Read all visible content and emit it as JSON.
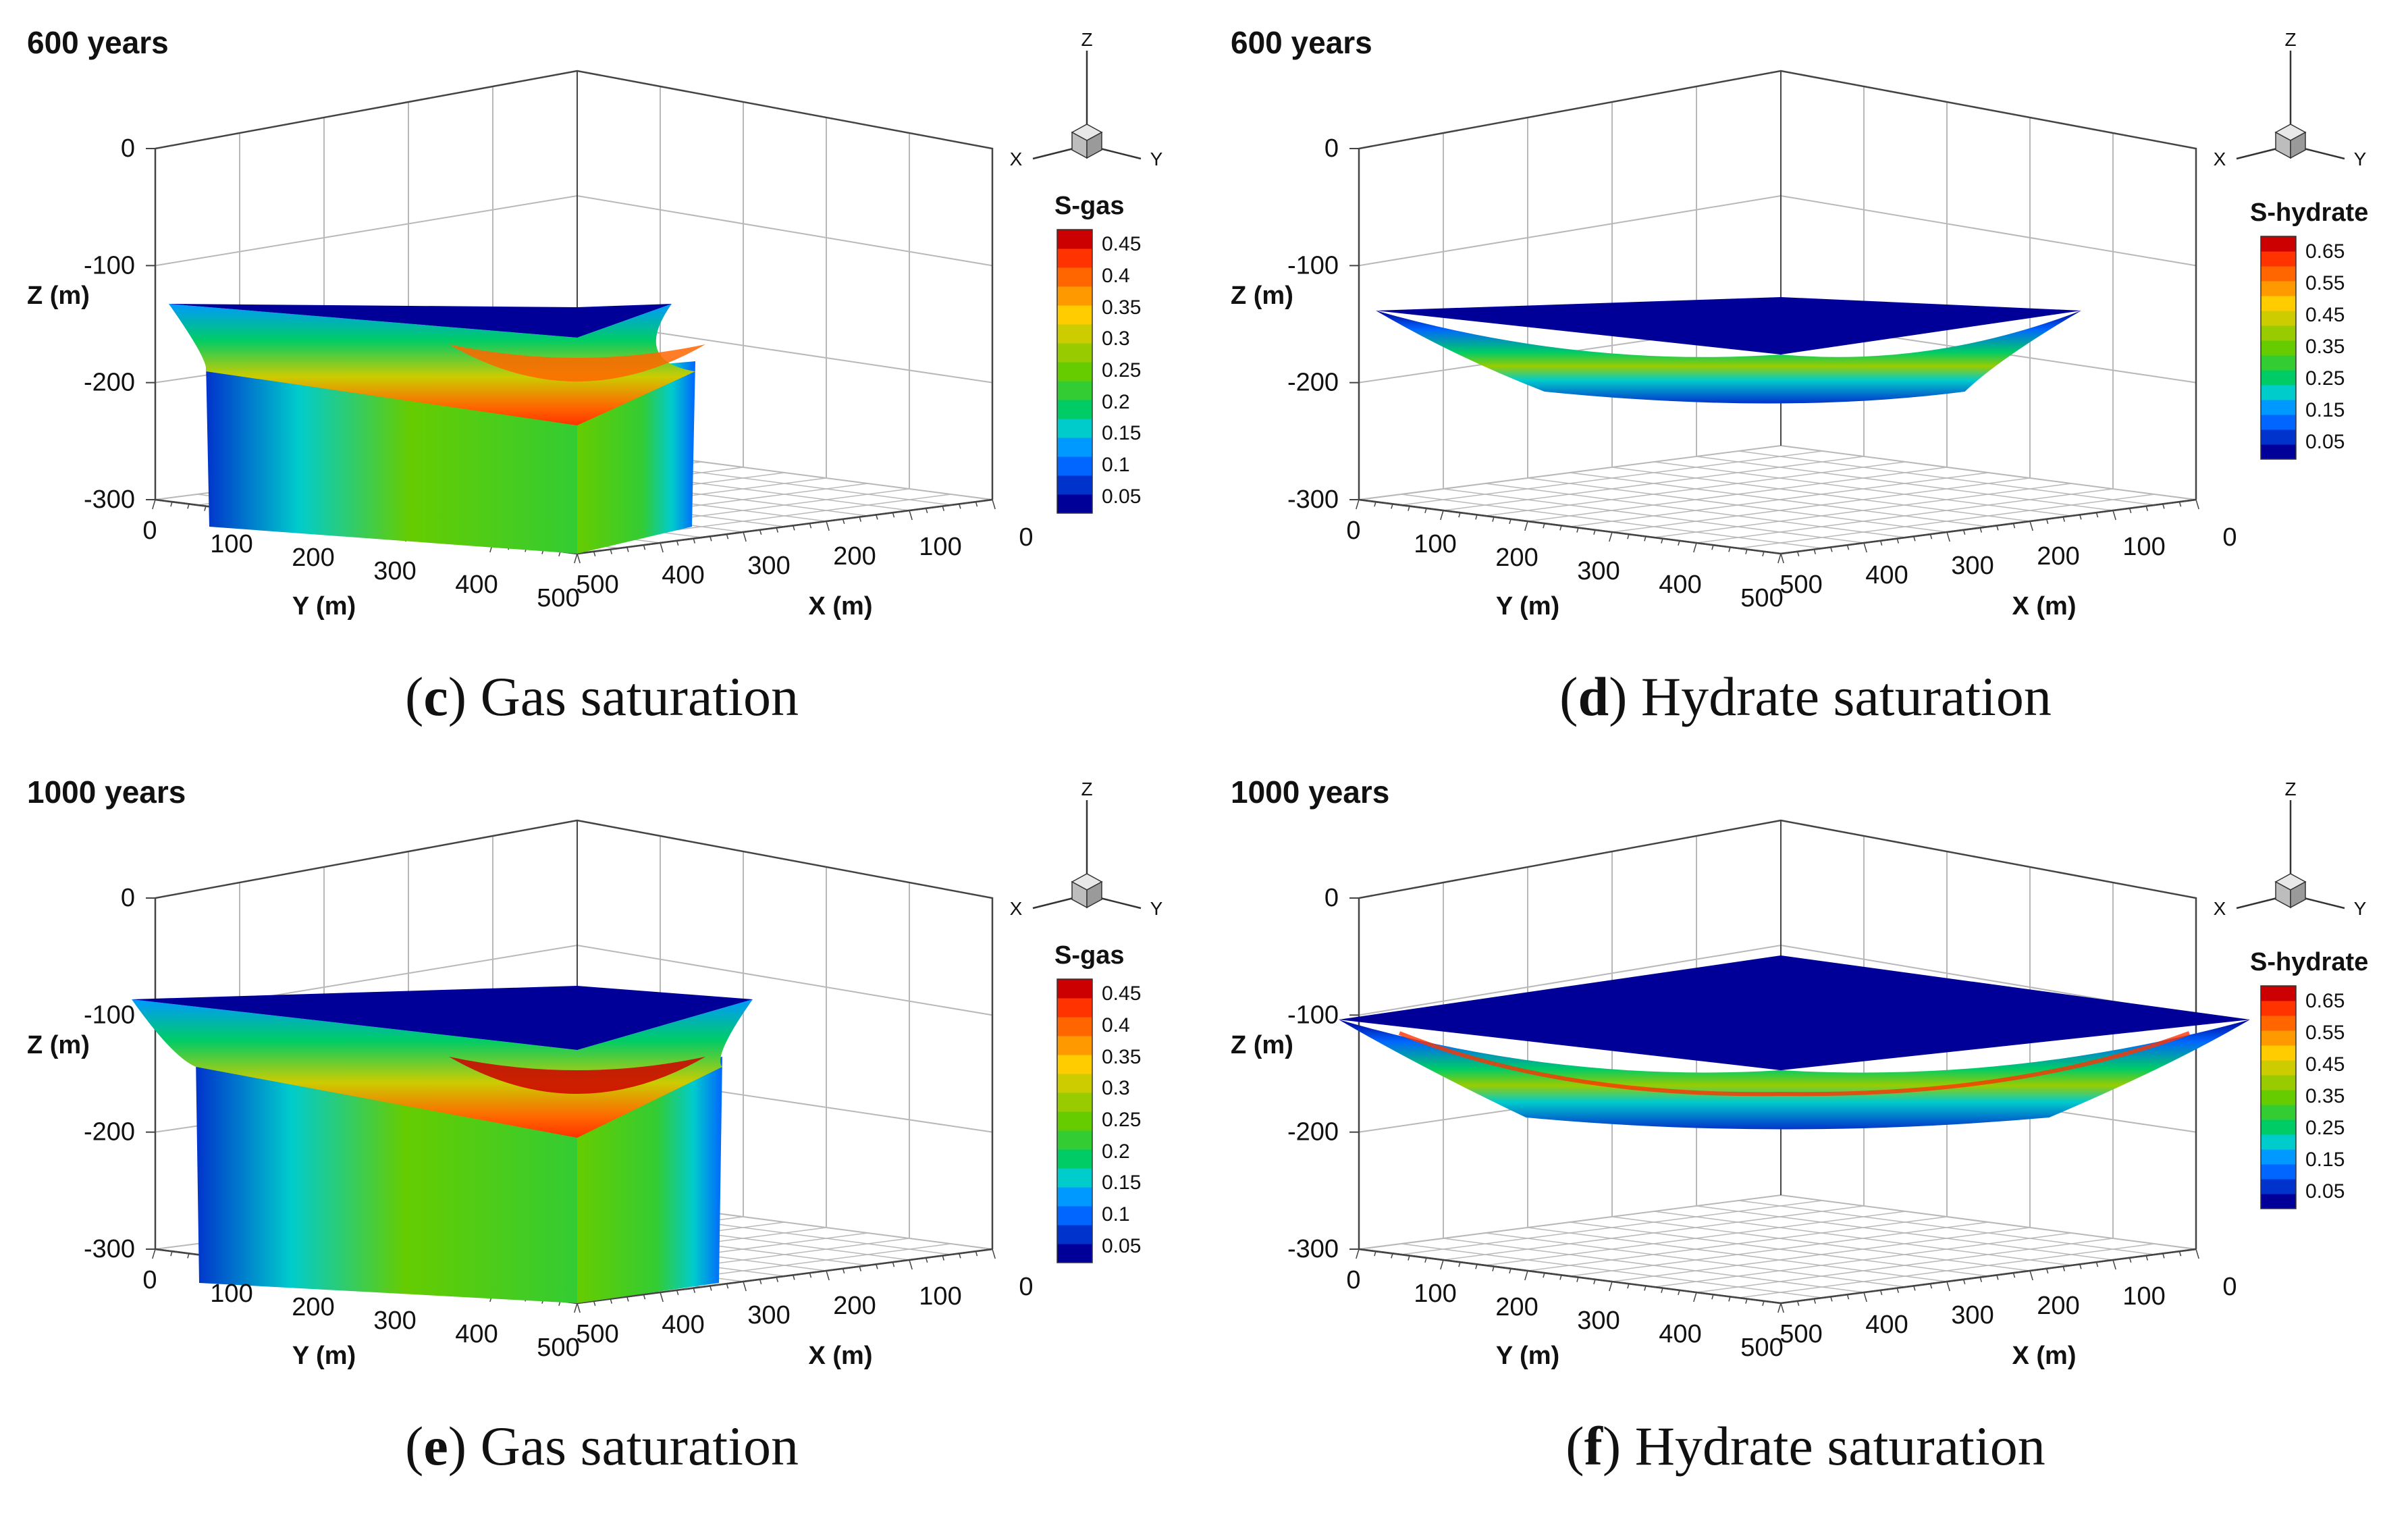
{
  "colors": {
    "scale": [
      "#000099",
      "#0033cc",
      "#0066ff",
      "#0099ff",
      "#00cccc",
      "#00cc66",
      "#33cc33",
      "#66cc00",
      "#99cc00",
      "#cccc00",
      "#ffcc00",
      "#ff9900",
      "#ff6600",
      "#ff3300",
      "#cc0000"
    ],
    "background": "#ffffff",
    "grid": "#b8b8b8"
  },
  "panels": [
    {
      "id": "c",
      "time_label": "600 years",
      "caption_letter": "c",
      "caption_text": "Gas saturation",
      "legend_title": "S-gas",
      "legend_ticks": [
        "0.45",
        "0.4",
        "0.35",
        "0.3",
        "0.25",
        "0.2",
        "0.15",
        "0.1",
        "0.05"
      ],
      "body_shape": "column"
    },
    {
      "id": "d",
      "time_label": "600 years",
      "caption_letter": "d",
      "caption_text": "Hydrate saturation",
      "legend_title": "S-hydrate",
      "legend_ticks": [
        "0.65",
        "0.55",
        "0.45",
        "0.35",
        "0.25",
        "0.15",
        "0.05"
      ],
      "body_shape": "lens-small"
    },
    {
      "id": "e",
      "time_label": "1000 years",
      "caption_letter": "e",
      "caption_text": "Gas saturation",
      "legend_title": "S-gas",
      "legend_ticks": [
        "0.45",
        "0.4",
        "0.35",
        "0.3",
        "0.25",
        "0.2",
        "0.15",
        "0.1",
        "0.05"
      ],
      "body_shape": "column-wide"
    },
    {
      "id": "f",
      "time_label": "1000 years",
      "caption_letter": "f",
      "caption_text": "Hydrate saturation",
      "legend_title": "S-hydrate",
      "legend_ticks": [
        "0.65",
        "0.55",
        "0.45",
        "0.35",
        "0.25",
        "0.15",
        "0.05"
      ],
      "body_shape": "lens-wide"
    }
  ],
  "chart_data": [
    {
      "type": "3d-contour",
      "panel": "c",
      "title": "600 years",
      "variable": "S-gas",
      "zlabel": "Z (m)",
      "ylabel": "Y (m)",
      "xlabel": "X (m)",
      "z_ticks": [
        "0",
        "-100",
        "-200",
        "-300"
      ],
      "y_ticks": [
        "0",
        "100",
        "200",
        "300",
        "400",
        "500"
      ],
      "x_ticks": [
        "500",
        "400",
        "300",
        "200",
        "100",
        "0"
      ],
      "zlim": [
        -300,
        0
      ],
      "xlim": [
        0,
        500
      ],
      "ylim": [
        0,
        500
      ],
      "colorbar_range": [
        0.05,
        0.45
      ],
      "triad": {
        "z": "Z",
        "x": "X",
        "y": "Y"
      }
    },
    {
      "type": "3d-contour",
      "panel": "d",
      "title": "600 years",
      "variable": "S-hydrate",
      "zlabel": "Z (m)",
      "ylabel": "Y (m)",
      "xlabel": "X (m)",
      "z_ticks": [
        "0",
        "-100",
        "-200",
        "-300"
      ],
      "y_ticks": [
        "0",
        "100",
        "200",
        "300",
        "400",
        "500"
      ],
      "x_ticks": [
        "500",
        "400",
        "300",
        "200",
        "100",
        "0"
      ],
      "zlim": [
        -300,
        0
      ],
      "xlim": [
        0,
        500
      ],
      "ylim": [
        0,
        500
      ],
      "colorbar_range": [
        0.05,
        0.65
      ],
      "triad": {
        "z": "Z",
        "x": "X",
        "y": "Y"
      }
    },
    {
      "type": "3d-contour",
      "panel": "e",
      "title": "1000 years",
      "variable": "S-gas",
      "zlabel": "Z (m)",
      "ylabel": "Y (m)",
      "xlabel": "X (m)",
      "z_ticks": [
        "0",
        "-100",
        "-200",
        "-300"
      ],
      "y_ticks": [
        "0",
        "100",
        "200",
        "300",
        "400",
        "500"
      ],
      "x_ticks": [
        "500",
        "400",
        "300",
        "200",
        "100",
        "0"
      ],
      "zlim": [
        -300,
        0
      ],
      "xlim": [
        0,
        500
      ],
      "ylim": [
        0,
        500
      ],
      "colorbar_range": [
        0.05,
        0.45
      ],
      "triad": {
        "z": "Z",
        "x": "X",
        "y": "Y"
      }
    },
    {
      "type": "3d-contour",
      "panel": "f",
      "title": "1000 years",
      "variable": "S-hydrate",
      "zlabel": "Z (m)",
      "ylabel": "Y (m)",
      "xlabel": "X (m)",
      "z_ticks": [
        "0",
        "-100",
        "-200",
        "-300"
      ],
      "y_ticks": [
        "0",
        "100",
        "200",
        "300",
        "400",
        "500"
      ],
      "x_ticks": [
        "500",
        "400",
        "300",
        "200",
        "100",
        "0"
      ],
      "zlim": [
        -300,
        0
      ],
      "xlim": [
        0,
        500
      ],
      "ylim": [
        0,
        500
      ],
      "colorbar_range": [
        0.05,
        0.65
      ],
      "triad": {
        "z": "Z",
        "x": "X",
        "y": "Y"
      }
    }
  ]
}
